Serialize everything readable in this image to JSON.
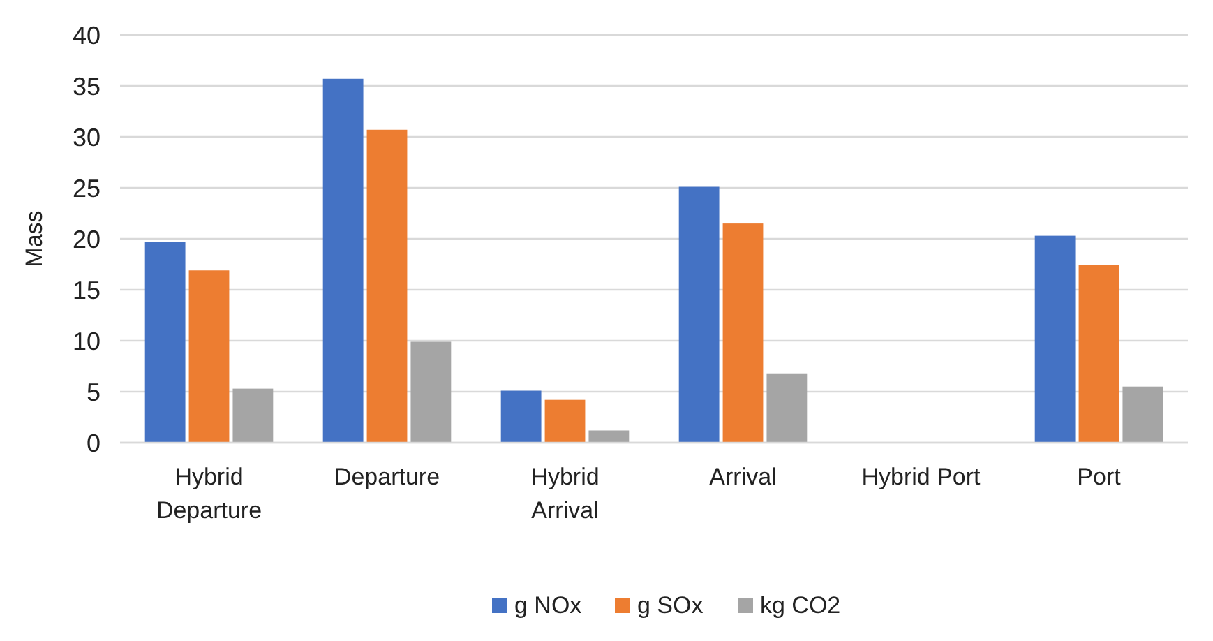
{
  "chart_data": {
    "type": "bar",
    "ylabel": "Mass",
    "categories": [
      "Hybrid Departure",
      "Departure",
      "Hybrid Arrival",
      "Arrival",
      "Hybrid Port",
      "Port"
    ],
    "series": [
      {
        "name": "g NOx",
        "color": "#4472c4",
        "values": [
          19.7,
          35.7,
          5.1,
          25.1,
          0,
          20.3
        ]
      },
      {
        "name": "g SOx",
        "color": "#ed7d31",
        "values": [
          16.9,
          30.7,
          4.2,
          21.5,
          0,
          17.4
        ]
      },
      {
        "name": "kg CO2",
        "color": "#a5a5a5",
        "values": [
          5.3,
          9.9,
          1.2,
          6.8,
          0,
          5.5
        ]
      }
    ],
    "ylim": [
      0,
      40
    ],
    "yticks": [
      0,
      5,
      10,
      15,
      20,
      25,
      30,
      35,
      40
    ],
    "grid": "y",
    "legend": "bottom"
  }
}
